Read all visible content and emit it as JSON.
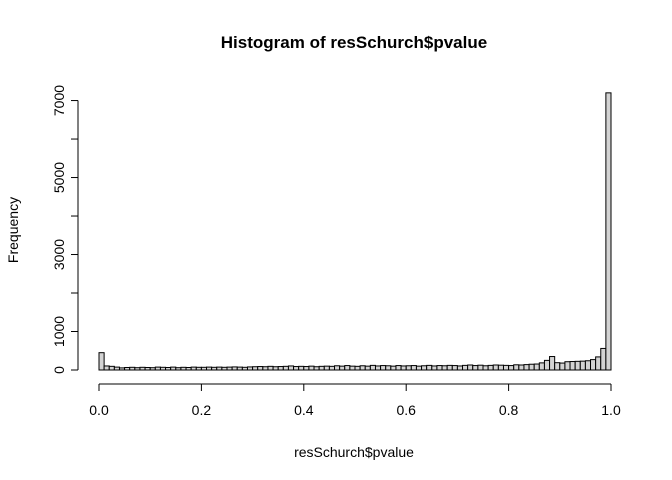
{
  "chart_data": {
    "type": "histogram",
    "title": "Histogram of resSchurch$pvalue",
    "xlabel": "resSchurch$pvalue",
    "ylabel": "Frequency",
    "xlim": [
      0,
      1
    ],
    "ylim": [
      0,
      7300
    ],
    "x_ticks": [
      0.0,
      0.2,
      0.4,
      0.6,
      0.8,
      1.0
    ],
    "x_tick_labels": [
      "0.0",
      "0.2",
      "0.4",
      "0.6",
      "0.8",
      "1.0"
    ],
    "y_ticks": [
      0,
      1000,
      2000,
      3000,
      4000,
      5000,
      6000,
      7000
    ],
    "y_tick_labels": [
      "0",
      "1000",
      "",
      "3000",
      "",
      "5000",
      "",
      "7000"
    ],
    "bin_width": 0.01,
    "bar_color": "#d3d3d3",
    "values": [
      450,
      105,
      95,
      75,
      55,
      65,
      70,
      60,
      70,
      65,
      60,
      75,
      70,
      65,
      75,
      60,
      70,
      65,
      75,
      70,
      70,
      75,
      70,
      75,
      70,
      75,
      80,
      75,
      70,
      80,
      85,
      90,
      85,
      95,
      85,
      90,
      95,
      105,
      90,
      95,
      90,
      100,
      85,
      95,
      100,
      95,
      110,
      100,
      115,
      100,
      95,
      110,
      100,
      120,
      105,
      115,
      110,
      100,
      115,
      105,
      110,
      115,
      100,
      110,
      120,
      105,
      115,
      110,
      120,
      115,
      105,
      120,
      130,
      115,
      125,
      110,
      120,
      130,
      125,
      120,
      115,
      135,
      130,
      140,
      150,
      155,
      185,
      250,
      350,
      190,
      180,
      215,
      220,
      225,
      230,
      240,
      270,
      340,
      560,
      7200
    ]
  }
}
